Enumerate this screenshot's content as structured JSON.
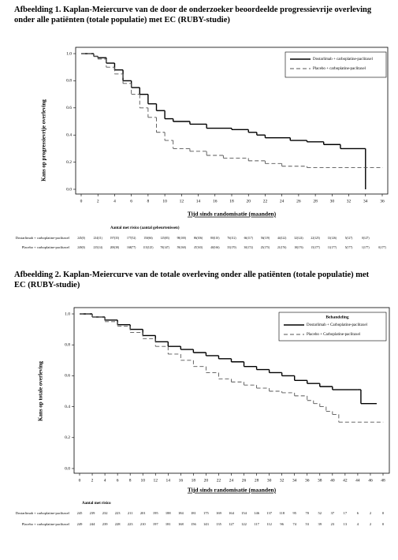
{
  "chart_data": [
    {
      "type": "step",
      "title": "Afbeelding 1. Kaplan-Meiercurve van de door de onderzoeker beoordeelde progressievrije overleving onder alle patiënten (totale populatie) met EC (RUBY-studie)",
      "x_label": "Tijd sinds randomisatie (maanden)",
      "y_label": "Kans op progressievrije overleving",
      "xlim": [
        0,
        36
      ],
      "xticks": [
        0,
        2,
        4,
        6,
        8,
        10,
        12,
        14,
        16,
        18,
        20,
        22,
        24,
        26,
        28,
        30,
        32,
        34,
        36
      ],
      "ylim": [
        0,
        1
      ],
      "yticks": [
        {
          "value": 0,
          "label": "0.0"
        },
        {
          "value": 0.2,
          "label": "0.2"
        },
        {
          "value": 0.4,
          "label": "0.4"
        },
        {
          "value": 0.6,
          "label": "0.6"
        },
        {
          "value": 0.8,
          "label": "0.8"
        },
        {
          "value": 1,
          "label": "1.0"
        }
      ],
      "legend_position": "upper right",
      "series": [
        {
          "name": "Dostarlimab + carboplatine-paclitaxel",
          "color": "#000000",
          "line_style": "solid",
          "x": [
            0,
            1.5,
            2,
            3,
            4,
            5,
            6,
            7,
            8,
            9,
            10,
            11,
            13,
            15,
            18,
            20,
            21,
            22,
            25,
            27,
            29,
            31,
            34
          ],
          "values": [
            1,
            0.98,
            0.97,
            0.93,
            0.88,
            0.8,
            0.75,
            0.7,
            0.63,
            0.58,
            0.52,
            0.5,
            0.48,
            0.45,
            0.44,
            0.42,
            0.4,
            0.38,
            0.36,
            0.35,
            0.33,
            0.3,
            0
          ]
        },
        {
          "name": "Placebo + carboplatine-paclitaxel",
          "color": "#555555",
          "line_style": "dashed",
          "x": [
            0,
            1.5,
            2,
            3,
            4,
            5,
            6,
            7,
            8,
            9,
            10,
            11,
            13,
            15,
            17,
            20,
            22,
            24,
            27,
            36
          ],
          "values": [
            1,
            0.98,
            0.96,
            0.9,
            0.85,
            0.78,
            0.7,
            0.6,
            0.53,
            0.42,
            0.36,
            0.3,
            0.28,
            0.25,
            0.23,
            0.21,
            0.19,
            0.17,
            0.16,
            0.16
          ]
        }
      ],
      "risk_table": {
        "title": "Aantal met risico (aantal gebeurtenissen)",
        "rows": [
          {
            "label": "Dostarlimab + carboplatine-paclitaxel",
            "values": [
              "245(0)",
              "234(11)",
              "197(35)",
              "177(52)",
              "150(66)",
              "125(83)",
              "98(100)",
              "86(106)",
              "80(110)",
              "76(112)",
              "66(117)",
              "56(119)",
              "44(122)",
              "32(124)",
              "22(125)",
              "13(126)",
              "5(127)",
              "0(127)",
              ""
            ]
          },
          {
            "label": "Placebo + carboplatine-paclitaxel",
            "values": [
              "249(0)",
              "235(14)",
              "200(38)",
              "168(77)",
              "115(125)",
              "78(147)",
              "59(160)",
              "47(165)",
              "40(166)",
              "35(170)",
              "30(172)",
              "25(175)",
              "21(176)",
              "18(176)",
              "15(177)",
              "11(177)",
              "5(177)",
              "1(177)",
              "0(177)"
            ]
          }
        ]
      }
    },
    {
      "type": "step",
      "title": "Afbeelding 2. Kaplan-Meiercurve van de totale overleving onder alle patiënten (totale populatie) met EC (RUBY-studie)",
      "x_label": "Tijd sinds randomisatie (maanden)",
      "y_label": "Kans op totale overleving",
      "legend_title": "Behandeling",
      "xlim": [
        0,
        48
      ],
      "xticks": [
        0,
        2,
        4,
        6,
        8,
        10,
        12,
        14,
        16,
        18,
        20,
        22,
        24,
        26,
        28,
        30,
        32,
        34,
        36,
        38,
        40,
        42,
        44,
        46,
        48
      ],
      "ylim": [
        0,
        1
      ],
      "yticks": [
        {
          "value": 0,
          "label": "0.0"
        },
        {
          "value": 0.2,
          "label": "0.2"
        },
        {
          "value": 0.4,
          "label": "0.4"
        },
        {
          "value": 0.6,
          "label": "0.6"
        },
        {
          "value": 0.8,
          "label": "0.8"
        },
        {
          "value": 1,
          "label": "1.0"
        }
      ],
      "legend_position": "upper right",
      "series": [
        {
          "name": "Dostarlimab + Carboplatine-paclitaxel",
          "color": "#000000",
          "line_style": "solid",
          "x": [
            0,
            2,
            4,
            6,
            8,
            10,
            12,
            14,
            16,
            18,
            20,
            22,
            24,
            26,
            28,
            30,
            32,
            34,
            36,
            38,
            40,
            44,
            44.5,
            47
          ],
          "values": [
            1,
            0.98,
            0.96,
            0.93,
            0.9,
            0.86,
            0.82,
            0.79,
            0.77,
            0.75,
            0.73,
            0.71,
            0.69,
            0.66,
            0.64,
            0.62,
            0.6,
            0.57,
            0.55,
            0.53,
            0.51,
            0.51,
            0.42,
            0.42
          ]
        },
        {
          "name": "Placebo + Carboplatine-paclitaxel",
          "color": "#555555",
          "line_style": "dashed",
          "x": [
            0,
            2,
            4,
            6,
            8,
            10,
            12,
            14,
            16,
            18,
            20,
            22,
            24,
            26,
            28,
            30,
            32,
            34,
            36,
            37,
            38,
            39,
            40,
            41,
            48
          ],
          "values": [
            1,
            0.98,
            0.95,
            0.92,
            0.88,
            0.84,
            0.79,
            0.74,
            0.7,
            0.66,
            0.62,
            0.58,
            0.56,
            0.54,
            0.52,
            0.5,
            0.49,
            0.47,
            0.44,
            0.42,
            0.4,
            0.37,
            0.35,
            0.3,
            0.3
          ]
        }
      ],
      "risk_table": {
        "title": "Aantal met risico",
        "rows": [
          {
            "label": "Dostarlimab + carboplatine-paclitaxel",
            "values": [
              245,
              239,
              232,
              223,
              211,
              201,
              195,
              188,
              184,
              181,
              175,
              169,
              164,
              154,
              146,
              137,
              118,
              95,
              70,
              52,
              37,
              17,
              6,
              2,
              0
            ]
          },
          {
            "label": "Placebo + carboplatine-paclitaxel",
            "values": [
              249,
              244,
              239,
              228,
              223,
              210,
              197,
              181,
              168,
              156,
              143,
              135,
              127,
              122,
              117,
              112,
              96,
              74,
              53,
              39,
              23,
              13,
              4,
              2,
              0
            ]
          }
        ]
      }
    }
  ]
}
